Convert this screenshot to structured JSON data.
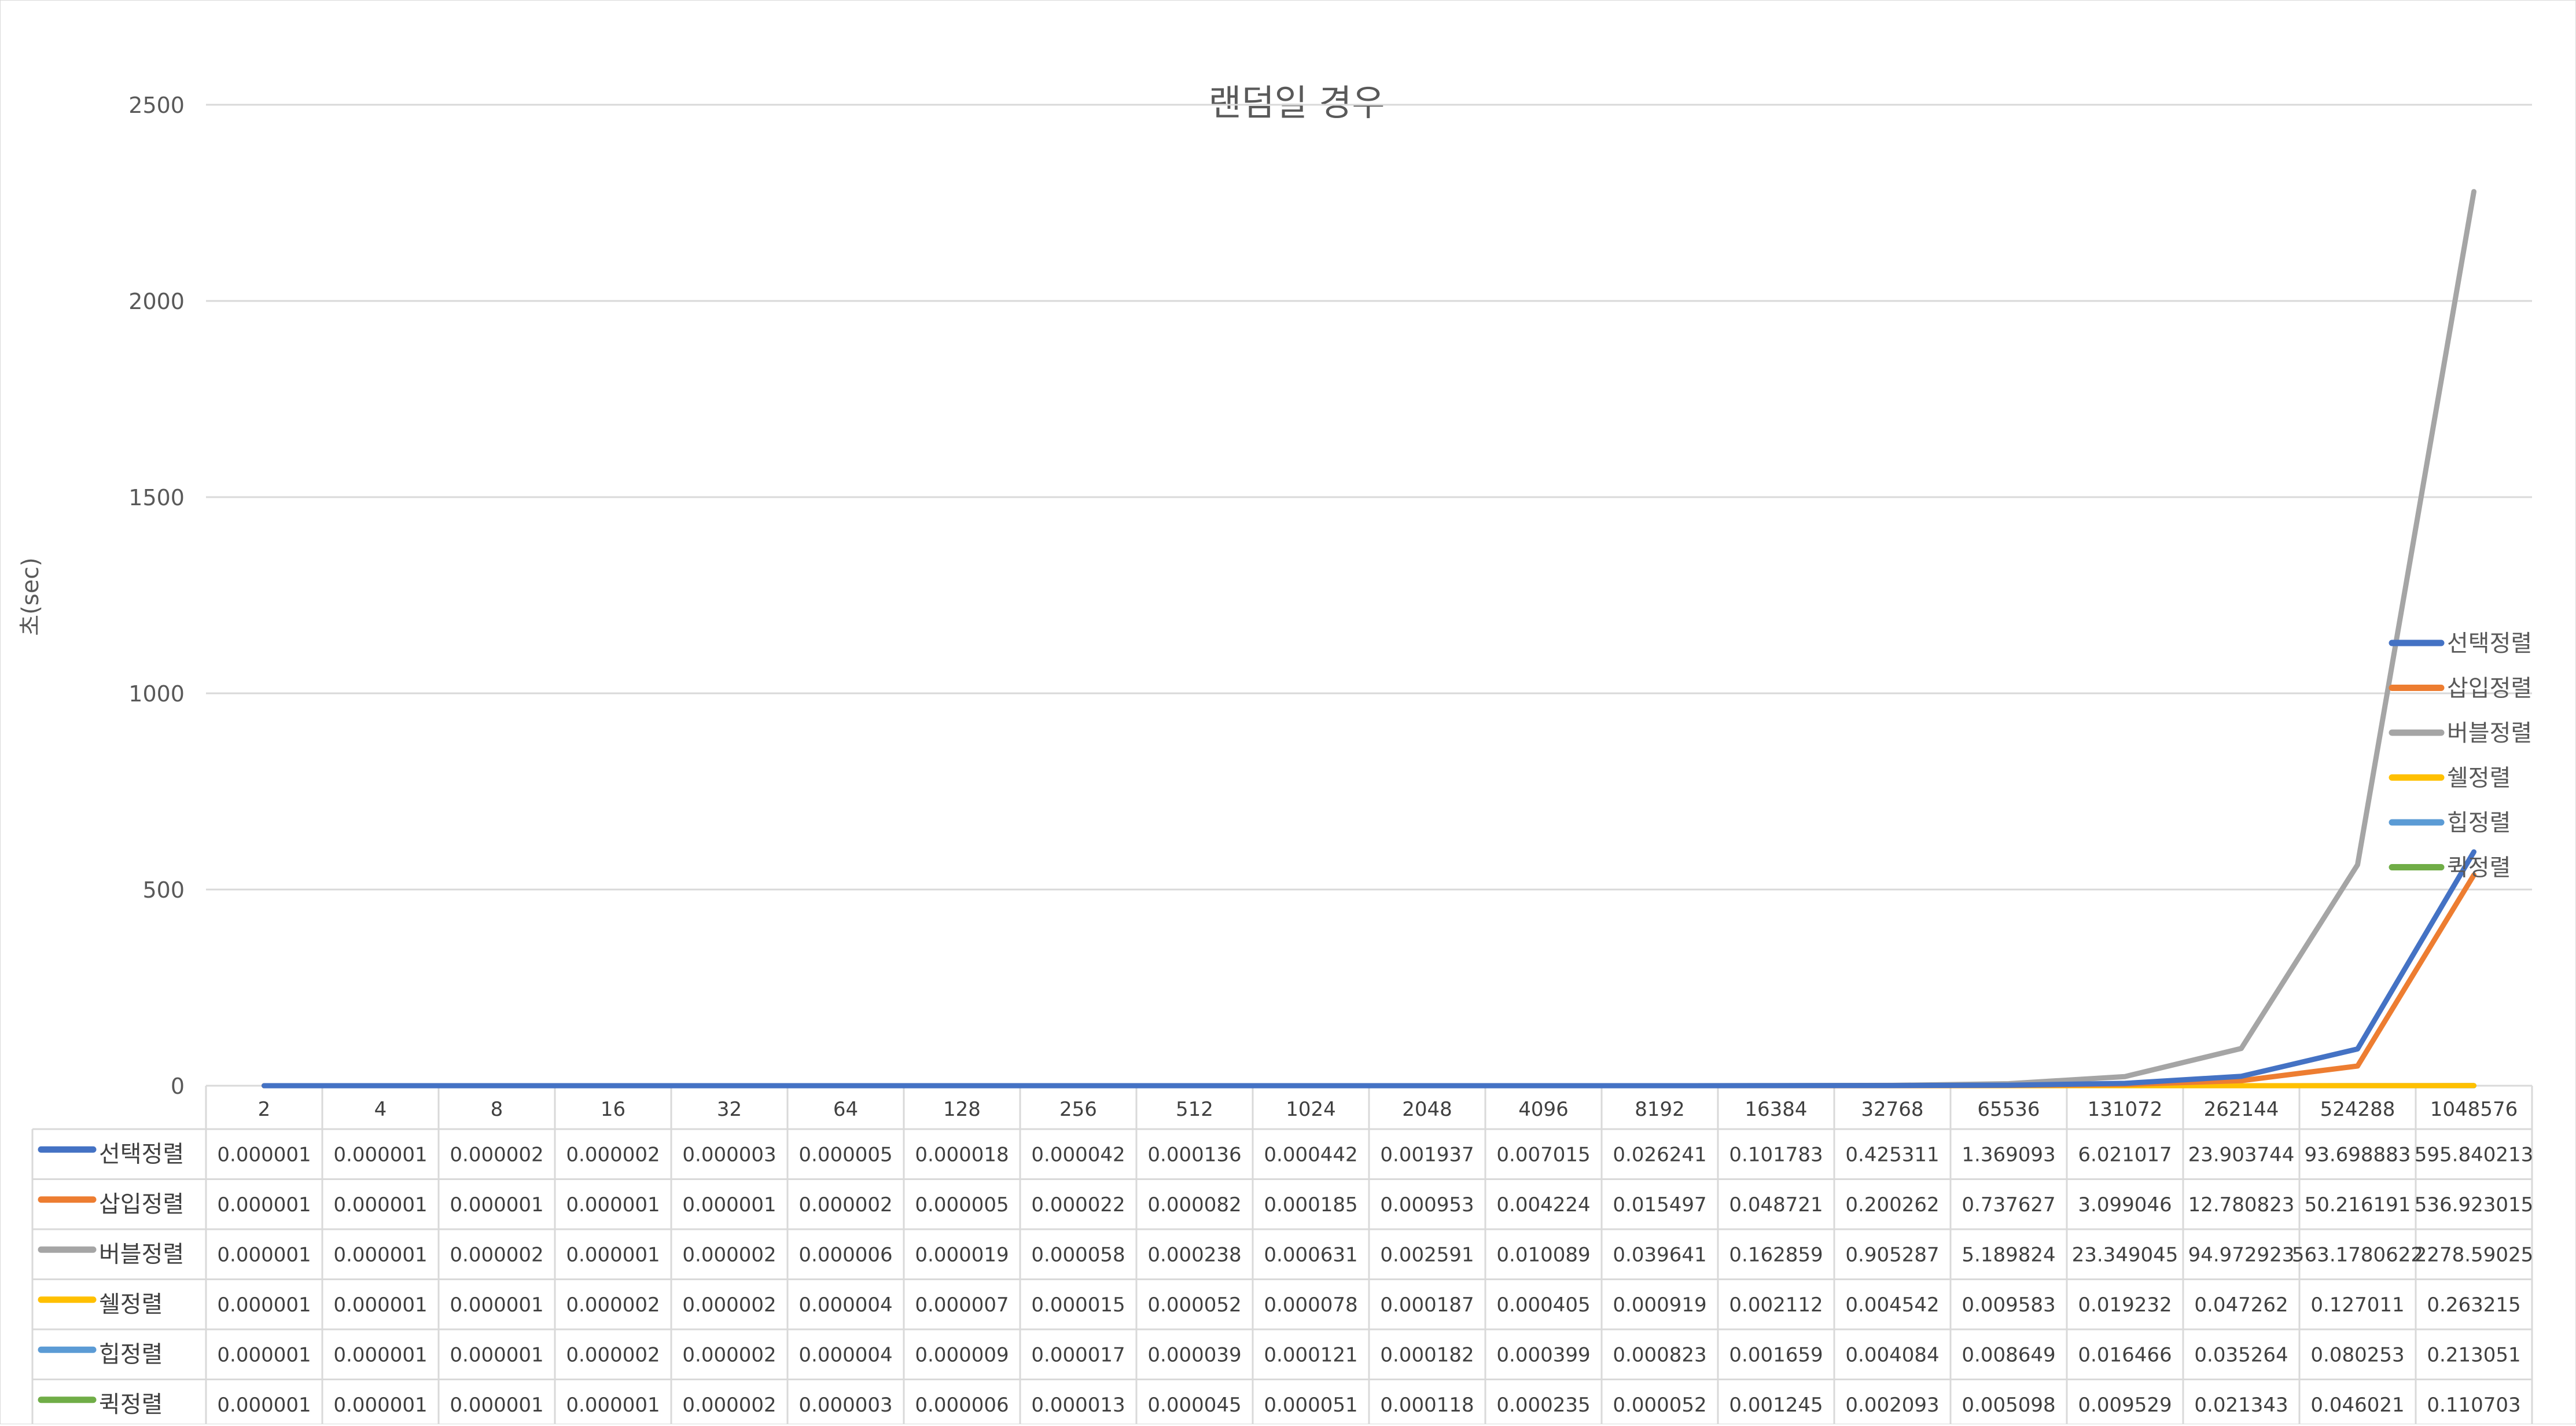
{
  "chart_data": {
    "type": "line",
    "title": "랜덤일 경우",
    "xlabel": "",
    "ylabel": "초(sec)",
    "ylim": [
      0,
      2500
    ],
    "yticks": [
      0,
      500,
      1000,
      1500,
      2000,
      2500
    ],
    "grid": true,
    "legend_position": "right",
    "data_table": true,
    "categories": [
      "2",
      "4",
      "8",
      "16",
      "32",
      "64",
      "128",
      "256",
      "512",
      "1024",
      "2048",
      "4096",
      "8192",
      "16384",
      "32768",
      "65536",
      "131072",
      "262144",
      "524288",
      "1048576"
    ],
    "series": [
      {
        "name": "선택정렬",
        "color": "#4472C4",
        "values": [
          1e-06,
          1e-06,
          2e-06,
          2e-06,
          3e-06,
          5e-06,
          1.8e-05,
          4.2e-05,
          0.000136,
          0.000442,
          0.001937,
          0.007015,
          0.026241,
          0.101783,
          0.425311,
          1.369093,
          6.021017,
          23.903744,
          93.698883,
          595.840213
        ]
      },
      {
        "name": "삽입정렬",
        "color": "#ED7D31",
        "values": [
          1e-06,
          1e-06,
          1e-06,
          1e-06,
          1e-06,
          2e-06,
          5e-06,
          2.2e-05,
          8.2e-05,
          0.000185,
          0.000953,
          0.004224,
          0.015497,
          0.048721,
          0.200262,
          0.737627,
          3.099046,
          12.780823,
          50.216191,
          536.923015
        ]
      },
      {
        "name": "버블정렬",
        "color": "#A5A5A5",
        "values": [
          1e-06,
          1e-06,
          2e-06,
          1e-06,
          2e-06,
          6e-06,
          1.9e-05,
          5.8e-05,
          0.000238,
          0.000631,
          0.002591,
          0.010089,
          0.039641,
          0.162859,
          0.905287,
          5.189824,
          23.349045,
          94.972923,
          563.178062,
          2278.59025
        ]
      },
      {
        "name": "쉘정렬",
        "color": "#FFC000",
        "values": [
          1e-06,
          1e-06,
          1e-06,
          2e-06,
          2e-06,
          4e-06,
          7e-06,
          1.5e-05,
          5.2e-05,
          7.8e-05,
          0.000187,
          0.000405,
          0.000919,
          0.002112,
          0.004542,
          0.009583,
          0.019232,
          0.047262,
          0.127011,
          0.263215
        ]
      },
      {
        "name": "힙정렬",
        "color": "#5B9BD5",
        "values": [
          1e-06,
          1e-06,
          1e-06,
          2e-06,
          2e-06,
          4e-06,
          9e-06,
          1.7e-05,
          3.9e-05,
          0.000121,
          0.000182,
          0.000399,
          0.000823,
          0.001659,
          0.004084,
          0.008649,
          0.016466,
          0.035264,
          0.080253,
          0.213051
        ]
      },
      {
        "name": "퀵정렬",
        "color": "#70AD47",
        "values": [
          1e-06,
          1e-06,
          1e-06,
          1e-06,
          2e-06,
          3e-06,
          6e-06,
          1.3e-05,
          4.5e-05,
          5.1e-05,
          0.000118,
          0.000235,
          5.2e-05,
          0.001245,
          0.002093,
          0.005098,
          0.009529,
          0.021343,
          0.046021,
          0.110703
        ]
      }
    ],
    "table_cells": [
      [
        "0.000001",
        "0.000001",
        "0.000002",
        "0.000002",
        "0.000003",
        "0.000005",
        "0.000018",
        "0.000042",
        "0.000136",
        "0.000442",
        "0.001937",
        "0.007015",
        "0.026241",
        "0.101783",
        "0.425311",
        "1.369093",
        "6.021017",
        "23.903744",
        "93.698883",
        "595.840213"
      ],
      [
        "0.000001",
        "0.000001",
        "0.000001",
        "0.000001",
        "0.000001",
        "0.000002",
        "0.000005",
        "0.000022",
        "0.000082",
        "0.000185",
        "0.000953",
        "0.004224",
        "0.015497",
        "0.048721",
        "0.200262",
        "0.737627",
        "3.099046",
        "12.780823",
        "50.216191",
        "536.923015"
      ],
      [
        "0.000001",
        "0.000001",
        "0.000002",
        "0.000001",
        "0.000002",
        "0.000006",
        "0.000019",
        "0.000058",
        "0.000238",
        "0.000631",
        "0.002591",
        "0.010089",
        "0.039641",
        "0.162859",
        "0.905287",
        "5.189824",
        "23.349045",
        "94.972923",
        "563.1780622",
        "2278.59025"
      ],
      [
        "0.000001",
        "0.000001",
        "0.000001",
        "0.000002",
        "0.000002",
        "0.000004",
        "0.000007",
        "0.000015",
        "0.000052",
        "0.000078",
        "0.000187",
        "0.000405",
        "0.000919",
        "0.002112",
        "0.004542",
        "0.009583",
        "0.019232",
        "0.047262",
        "0.127011",
        "0.263215"
      ],
      [
        "0.000001",
        "0.000001",
        "0.000001",
        "0.000002",
        "0.000002",
        "0.000004",
        "0.000009",
        "0.000017",
        "0.000039",
        "0.000121",
        "0.000182",
        "0.000399",
        "0.000823",
        "0.001659",
        "0.004084",
        "0.008649",
        "0.016466",
        "0.035264",
        "0.080253",
        "0.213051"
      ],
      [
        "0.000001",
        "0.000001",
        "0.000001",
        "0.000001",
        "0.000002",
        "0.000003",
        "0.000006",
        "0.000013",
        "0.000045",
        "0.000051",
        "0.000118",
        "0.000235",
        "0.000052",
        "0.001245",
        "0.002093",
        "0.005098",
        "0.009529",
        "0.021343",
        "0.046021",
        "0.110703"
      ]
    ]
  }
}
